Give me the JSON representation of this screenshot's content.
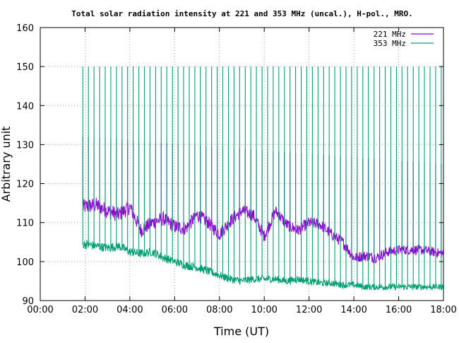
{
  "chart_data": {
    "type": "line",
    "title": "Total solar radiation intensity at 221 and 353 MHz (uncal.), H-pol., MRO.",
    "xlabel": "Time (UT)",
    "ylabel": "Arbitrary unit",
    "xlim": [
      0,
      18
    ],
    "ylim": [
      90,
      160
    ],
    "x_ticks": [
      0,
      2,
      4,
      6,
      8,
      10,
      12,
      14,
      16,
      18
    ],
    "x_tick_labels": [
      "00:00",
      "02:00",
      "04:00",
      "06:00",
      "08:00",
      "10:00",
      "12:00",
      "14:00",
      "16:00",
      "18:00"
    ],
    "y_ticks": [
      90,
      100,
      110,
      120,
      130,
      140,
      150,
      160
    ],
    "y_tick_labels": [
      "90",
      "100",
      "110",
      "120",
      "130",
      "140",
      "150",
      "160"
    ],
    "grid": true,
    "legend_position": "top-right",
    "series": [
      {
        "name": "221 MHz",
        "color": "#9400d3",
        "x": [
          1.9,
          2.5,
          3.0,
          3.5,
          4.0,
          4.5,
          5.0,
          5.5,
          6.0,
          6.5,
          7.0,
          7.5,
          8.0,
          8.5,
          9.0,
          9.5,
          10.0,
          10.5,
          11.0,
          11.5,
          12.0,
          12.5,
          13.0,
          13.5,
          14.0,
          14.5,
          15.0,
          15.5,
          16.0,
          16.5,
          17.0,
          17.5,
          18.0
        ],
        "y": [
          114,
          114.5,
          113,
          112,
          114,
          108,
          110,
          111,
          109,
          108.5,
          112,
          110,
          107,
          110.5,
          113,
          112,
          106.5,
          113,
          109.5,
          108,
          110,
          109.5,
          107,
          105,
          101,
          101.5,
          101,
          102.5,
          103,
          103,
          103,
          102.5,
          102
        ],
        "spike_interval_min": 15,
        "spike_peak_start": 132,
        "spike_peak_end": 125
      },
      {
        "name": "353 MHz",
        "color": "#009e73",
        "x": [
          1.9,
          2.5,
          3.0,
          3.5,
          4.0,
          4.5,
          5.0,
          5.5,
          6.0,
          6.5,
          7.0,
          7.5,
          8.0,
          8.5,
          9.0,
          9.5,
          10.0,
          10.5,
          11.0,
          11.5,
          12.0,
          12.5,
          13.0,
          13.5,
          14.0,
          14.5,
          15.0,
          15.5,
          16.0,
          16.5,
          17.0,
          17.5,
          18.0
        ],
        "y": [
          104.5,
          104,
          103.5,
          104,
          102.5,
          102,
          102.5,
          101,
          100,
          99,
          98.5,
          97.5,
          96.5,
          95.5,
          95,
          95.5,
          95.5,
          95.5,
          95,
          95.5,
          95,
          94.5,
          94.5,
          94,
          94,
          93.5,
          93.5,
          93.5,
          93.5,
          93.5,
          93.5,
          93.5,
          93.5
        ],
        "spike_interval_min": 15,
        "spike_peak": 150
      }
    ]
  }
}
